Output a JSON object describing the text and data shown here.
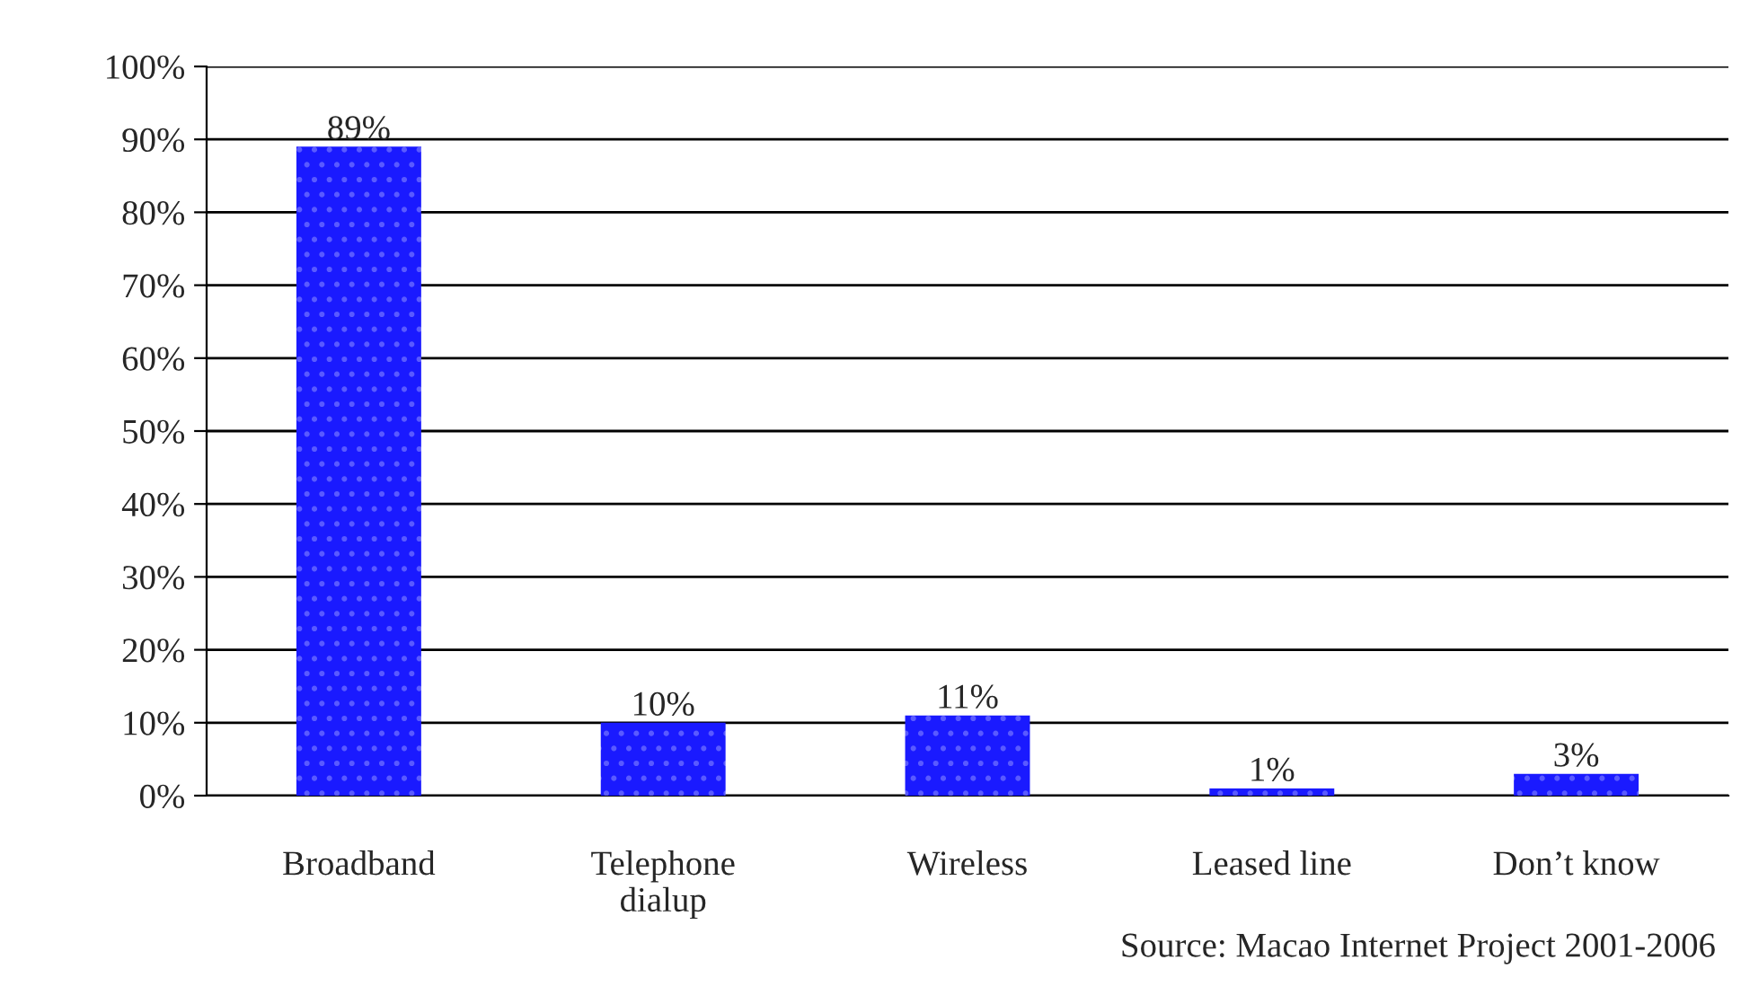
{
  "chart_data": {
    "type": "bar",
    "categories": [
      "Broadband",
      "Telephone\ndialup",
      "Wireless",
      "Leased line",
      "Don’t know"
    ],
    "values": [
      89,
      10,
      11,
      1,
      3
    ],
    "color": "#1a1aff",
    "value_labels": [
      "89%",
      "10%",
      "11%",
      "1%",
      "3%"
    ],
    "ylim": [
      0,
      100
    ],
    "yticks": [
      {
        "value": 0,
        "label": "0%"
      },
      {
        "value": 10,
        "label": "10%"
      },
      {
        "value": 20,
        "label": "20%"
      },
      {
        "value": 30,
        "label": "30%"
      },
      {
        "value": 40,
        "label": "40%"
      },
      {
        "value": 50,
        "label": "50%"
      },
      {
        "value": 60,
        "label": "60%"
      },
      {
        "value": 70,
        "label": "70%"
      },
      {
        "value": 80,
        "label": "80%"
      },
      {
        "value": 90,
        "label": "90%"
      },
      {
        "value": 100,
        "label": "100%"
      }
    ],
    "grid": "y",
    "annotations": [
      "Source: Macao Internet Project 2001-2006"
    ]
  }
}
